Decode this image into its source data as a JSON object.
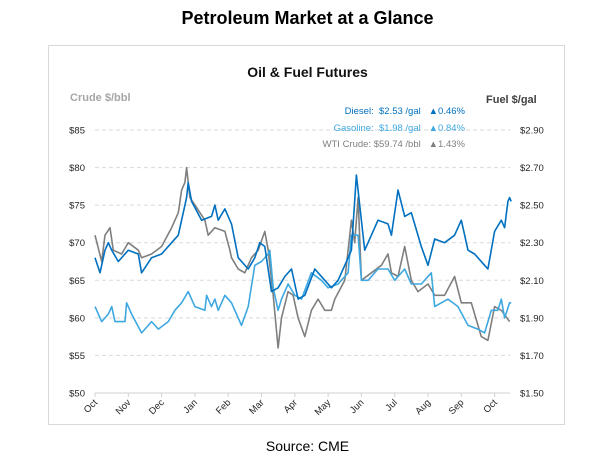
{
  "page_title": "Petroleum Market at a Glance",
  "source": "Source: CME",
  "legend": [
    {
      "name": "Diesel:",
      "price": "$2.53 /gal",
      "change": "▲0.46%",
      "color": "#0070c0"
    },
    {
      "name": "Gasoline:",
      "price": "$1.98 /gal",
      "change": "▲0.84%",
      "color": "#3ea8e0"
    },
    {
      "name": "WTI Crude:",
      "price": "$59.74 /bbl",
      "change": "▲1.43%",
      "color": "#7f7f7f"
    }
  ],
  "chart_data": {
    "type": "line",
    "title": "Oil & Fuel Futures",
    "ylabel": "Crude $/bbl",
    "y2label": "Fuel $/gal",
    "ylim": [
      50,
      85
    ],
    "y2lim": [
      1.5,
      2.9
    ],
    "yticks": [
      "$50",
      "$55",
      "$60",
      "$65",
      "$70",
      "$75",
      "$80",
      "$85"
    ],
    "y2ticks": [
      "$1.50",
      "$1.70",
      "$1.90",
      "$2.10",
      "$2.30",
      "$2.50",
      "$2.70",
      "$2.90"
    ],
    "xticks": [
      "Oct",
      "Nov",
      "Dec",
      "Jan",
      "Feb",
      "Mar",
      "Apr",
      "May",
      "Jun",
      "Jul",
      "Aug",
      "Sep",
      "Oct"
    ],
    "x_unit": "months since first Oct",
    "grid": true,
    "series": [
      {
        "name": "WTI Crude",
        "axis": "left",
        "color": "#7f7f7f",
        "x": [
          0,
          0.2,
          0.3,
          0.45,
          0.55,
          0.8,
          1.0,
          1.3,
          1.4,
          1.7,
          2.0,
          2.3,
          2.5,
          2.6,
          2.7,
          2.75,
          2.85,
          3.0,
          3.3,
          3.4,
          3.6,
          3.9,
          4.05,
          4.1,
          4.3,
          4.5,
          4.7,
          4.9,
          5.1,
          5.2,
          5.35,
          5.5,
          5.6,
          5.8,
          5.95,
          6.1,
          6.3,
          6.5,
          6.7,
          6.9,
          7.1,
          7.2,
          7.5,
          7.7,
          7.8,
          7.9,
          8.0,
          8.3,
          8.6,
          8.8,
          8.9,
          9.1,
          9.3,
          9.5,
          9.7,
          10.0,
          10.2,
          10.5,
          10.8,
          11.0,
          11.3,
          11.6,
          11.8,
          12.0,
          12.2,
          12.45
        ],
        "y": [
          71,
          67.5,
          71,
          72,
          69,
          68.5,
          70,
          69,
          68,
          68.5,
          69.5,
          72,
          74,
          77,
          78,
          80,
          76,
          75,
          73,
          71,
          72,
          71.5,
          69,
          68,
          66.5,
          66,
          68,
          69,
          71.5,
          69,
          63,
          56,
          60,
          63.5,
          63,
          60,
          57.5,
          61,
          62.5,
          61,
          61,
          62.5,
          65,
          73,
          70,
          76,
          65,
          66,
          67,
          68.5,
          66,
          65.5,
          69.5,
          65,
          63.5,
          64.5,
          63,
          63,
          65.5,
          62,
          62,
          57.5,
          57,
          61.5,
          61,
          59.5
        ]
      },
      {
        "name": "Diesel",
        "axis": "right",
        "color": "#0070c0",
        "x": [
          0,
          0.15,
          0.3,
          0.4,
          0.5,
          0.7,
          1,
          1.3,
          1.4,
          1.7,
          2.0,
          2.3,
          2.5,
          2.6,
          2.75,
          2.8,
          2.9,
          3.2,
          3.5,
          3.6,
          3.7,
          3.9,
          4.1,
          4.3,
          4.6,
          4.8,
          4.95,
          5.1,
          5.3,
          5.5,
          5.7,
          5.9,
          6.1,
          6.3,
          6.6,
          6.9,
          7.1,
          7.3,
          7.5,
          7.7,
          7.85,
          7.95,
          8.1,
          8.3,
          8.5,
          8.8,
          8.9,
          9.1,
          9.3,
          9.5,
          9.8,
          10.0,
          10.2,
          10.5,
          10.8,
          11.0,
          11.2,
          11.4,
          11.7,
          11.8,
          12.0,
          12.2,
          12.3,
          12.4,
          12.45,
          12.5
        ],
        "y": [
          2.22,
          2.14,
          2.26,
          2.3,
          2.26,
          2.2,
          2.26,
          2.24,
          2.14,
          2.22,
          2.24,
          2.3,
          2.34,
          2.42,
          2.54,
          2.62,
          2.52,
          2.42,
          2.44,
          2.5,
          2.42,
          2.48,
          2.4,
          2.22,
          2.16,
          2.22,
          2.3,
          2.28,
          2.04,
          2.06,
          2.12,
          2.16,
          2.0,
          2.02,
          2.16,
          2.1,
          2.06,
          2.1,
          2.18,
          2.26,
          2.66,
          2.5,
          2.26,
          2.34,
          2.42,
          2.4,
          2.34,
          2.58,
          2.44,
          2.46,
          2.28,
          2.18,
          2.32,
          2.3,
          2.34,
          2.42,
          2.26,
          2.24,
          2.18,
          2.16,
          2.36,
          2.42,
          2.38,
          2.52,
          2.54,
          2.52
        ]
      },
      {
        "name": "Gasoline",
        "axis": "right",
        "color": "#3ea8e0",
        "x": [
          0,
          0.2,
          0.4,
          0.5,
          0.6,
          0.9,
          0.95,
          1.1,
          1.4,
          1.7,
          1.9,
          2.2,
          2.4,
          2.6,
          2.8,
          3.0,
          3.3,
          3.35,
          3.5,
          3.6,
          3.7,
          3.9,
          4.1,
          4.3,
          4.4,
          4.6,
          4.8,
          5.0,
          5.2,
          5.25,
          5.35,
          5.5,
          5.6,
          5.8,
          6.0,
          6.2,
          6.5,
          6.8,
          7.0,
          7.3,
          7.6,
          7.7,
          7.9,
          8.0,
          8.2,
          8.5,
          8.8,
          9.0,
          9.3,
          9.5,
          9.8,
          10.1,
          10.2,
          10.6,
          10.9,
          11.2,
          11.5,
          11.7,
          11.9,
          12.1,
          12.2,
          12.3,
          12.45,
          12.5
        ],
        "y": [
          1.96,
          1.88,
          1.92,
          1.96,
          1.88,
          1.88,
          1.98,
          1.92,
          1.82,
          1.88,
          1.84,
          1.88,
          1.94,
          1.98,
          2.04,
          1.96,
          1.94,
          2.02,
          1.96,
          2.0,
          1.94,
          2.02,
          1.98,
          1.9,
          1.86,
          1.96,
          2.18,
          2.2,
          2.24,
          2.26,
          2.06,
          1.94,
          2.0,
          2.08,
          2.02,
          2.0,
          2.14,
          2.1,
          2.06,
          2.08,
          2.14,
          2.34,
          2.34,
          2.1,
          2.1,
          2.16,
          2.16,
          2.1,
          2.16,
          2.08,
          2.08,
          2.14,
          1.96,
          2.0,
          1.96,
          1.86,
          1.84,
          1.82,
          1.94,
          1.94,
          2.0,
          1.9,
          1.98,
          1.98
        ]
      }
    ]
  }
}
